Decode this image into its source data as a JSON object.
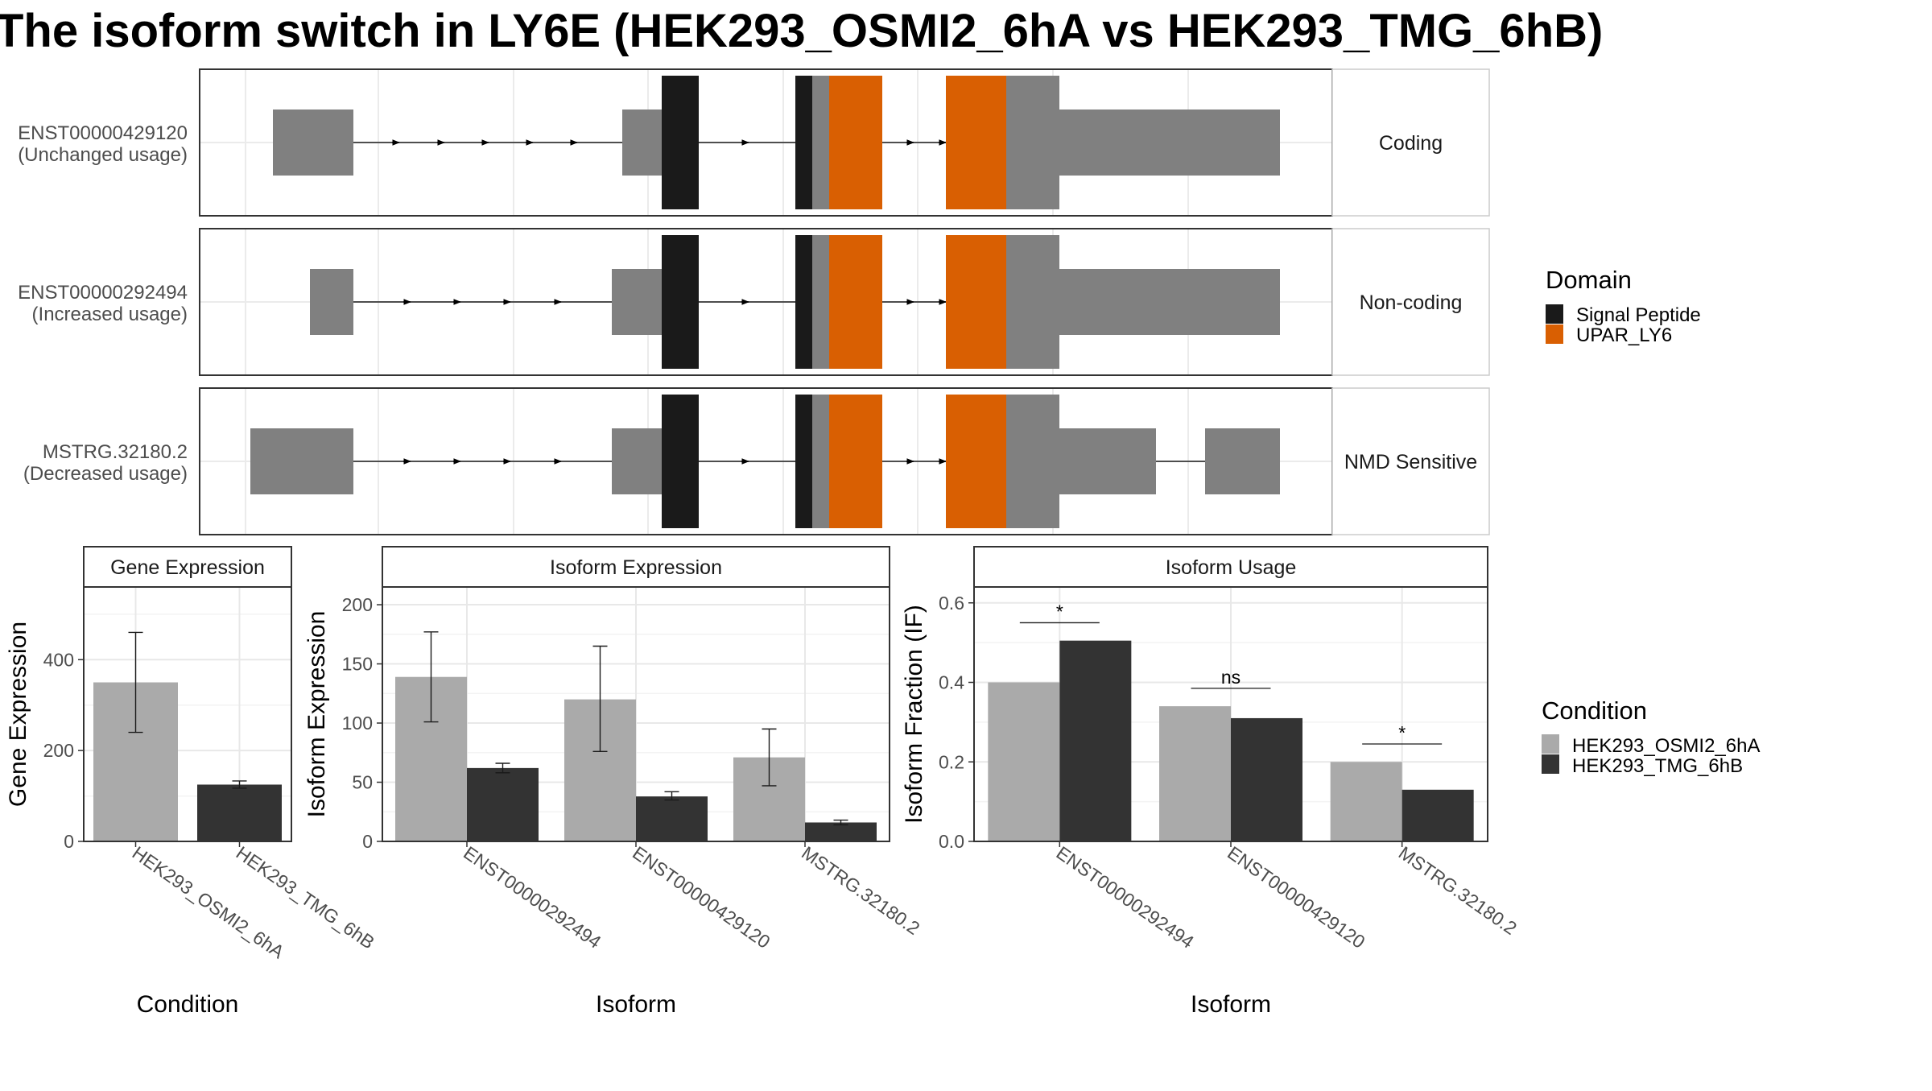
{
  "title": "The isoform switch in LY6E (HEK293_OSMI2_6hA vs HEK293_TMG_6hB)",
  "colors": {
    "signal_peptide": "#1a1a1a",
    "upar_ly6": "#d95f02",
    "exon": "#808080",
    "cond1": "#aaaaaa",
    "cond2": "#333333"
  },
  "domain_legend": {
    "title": "Domain",
    "items": [
      "Signal Peptide",
      "UPAR_LY6"
    ]
  },
  "condition_legend": {
    "title": "Condition",
    "items": [
      "HEK293_OSMI2_6hA",
      "HEK293_TMG_6hB"
    ]
  },
  "isoform_structure": {
    "rows": [
      {
        "id": "ENST00000429120",
        "usage": "(Unchanged usage)",
        "strip": "Coding"
      },
      {
        "id": "ENST00000292494",
        "usage": "(Increased usage)",
        "strip": "Non-coding"
      },
      {
        "id": "MSTRG.32180.2",
        "usage": "(Decreased usage)",
        "strip": "NMD Sensitive"
      }
    ]
  },
  "chart_data": [
    {
      "type": "bar",
      "strip": "Gene Expression",
      "categories": [
        "HEK293_OSMI2_6hA",
        "HEK293_TMG_6hB"
      ],
      "values": [
        350,
        125
      ],
      "errors": [
        [
          240,
          460
        ],
        [
          117,
          133
        ]
      ],
      "xlabel": "Condition",
      "ylabel": "Gene Expression",
      "ylim": [
        0,
        560
      ],
      "yticks": [
        "0",
        "200",
        "400"
      ]
    },
    {
      "type": "bar",
      "strip": "Isoform Expression",
      "categories": [
        "ENST00000292494",
        "ENST00000429120",
        "MSTRG.32180.2"
      ],
      "series": [
        {
          "name": "HEK293_OSMI2_6hA",
          "values": [
            139,
            120,
            71
          ],
          "errors": [
            [
              101,
              177
            ],
            [
              76,
              165
            ],
            [
              47,
              95
            ]
          ]
        },
        {
          "name": "HEK293_TMG_6hB",
          "values": [
            62,
            38,
            16
          ],
          "errors": [
            [
              58,
              66
            ],
            [
              35,
              42
            ],
            [
              14,
              18
            ]
          ]
        }
      ],
      "xlabel": "Isoform",
      "ylabel": "Isoform Expression",
      "ylim": [
        0,
        215
      ],
      "yticks": [
        "0",
        "50",
        "100",
        "150",
        "200"
      ]
    },
    {
      "type": "bar",
      "strip": "Isoform Usage",
      "categories": [
        "ENST00000292494",
        "ENST00000429120",
        "MSTRG.32180.2"
      ],
      "series": [
        {
          "name": "HEK293_OSMI2_6hA",
          "values": [
            0.4,
            0.34,
            0.2
          ]
        },
        {
          "name": "HEK293_TMG_6hB",
          "values": [
            0.505,
            0.31,
            0.13
          ]
        }
      ],
      "significance": [
        "*",
        "ns",
        "*"
      ],
      "xlabel": "Isoform",
      "ylabel": "Isoform Fraction (IF)",
      "ylim": [
        0,
        0.64
      ],
      "yticks": [
        "0.0",
        "0.2",
        "0.4",
        "0.6"
      ]
    }
  ]
}
